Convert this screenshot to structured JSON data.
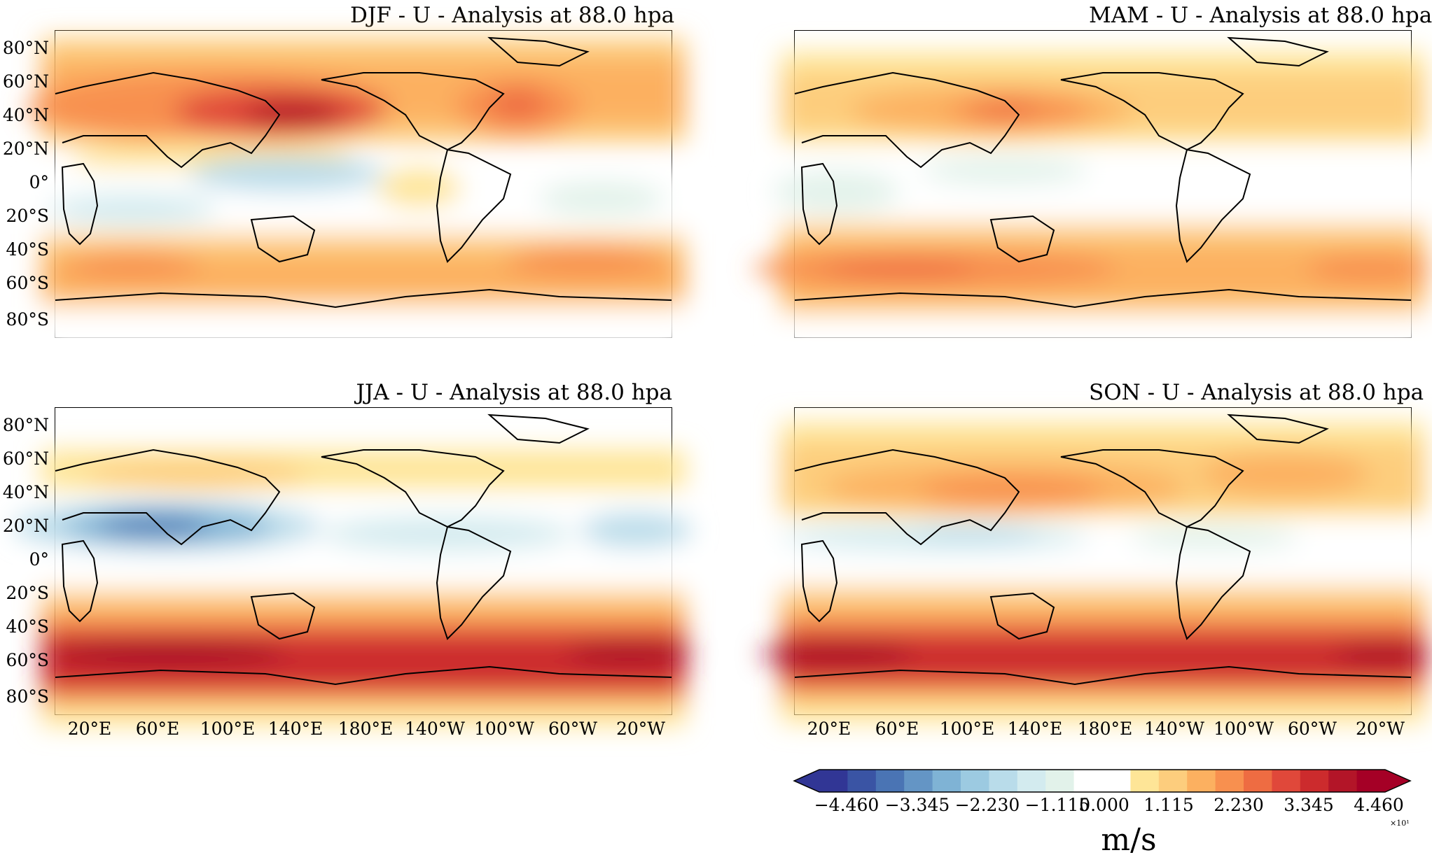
{
  "panels": [
    {
      "id": "djf",
      "title": "DJF - U - Analysis at 88.0 hpa"
    },
    {
      "id": "mam",
      "title": "MAM - U - Analysis at 88.0 hpa"
    },
    {
      "id": "jja",
      "title": "JJA - U - Analysis at 88.0 hpa"
    },
    {
      "id": "son",
      "title": "SON - U - Analysis at 88.0 hpa"
    }
  ],
  "y_ticks": [
    "80°N",
    "60°N",
    "40°N",
    "20°N",
    "0°",
    "20°S",
    "40°S",
    "60°S",
    "80°S"
  ],
  "x_ticks": [
    "20°E",
    "60°E",
    "100°E",
    "140°E",
    "180°E",
    "140°W",
    "100°W",
    "60°W",
    "20°W"
  ],
  "colorbar": {
    "ticks": [
      "−4.460",
      "−3.345",
      "−2.230",
      "−1.115",
      "0.000",
      "1.115",
      "2.230",
      "3.345",
      "4.460"
    ],
    "unit": "m/s",
    "exponent": "×10¹",
    "colors": [
      "#313695",
      "#3a54a4",
      "#4a74b4",
      "#6495c5",
      "#7fb3d5",
      "#9ccae1",
      "#b9dcea",
      "#d3ebef",
      "#e2f2ea",
      "#ffffff",
      "#ffffff",
      "#fee597",
      "#fdcd7d",
      "#fcb060",
      "#f8904f",
      "#ee6c42",
      "#e0483a",
      "#cc2b2d",
      "#b31528",
      "#a50026"
    ]
  },
  "colors": {
    "positive_max": "#a50026",
    "negative_max": "#313695",
    "zero": "#ffffff"
  }
}
